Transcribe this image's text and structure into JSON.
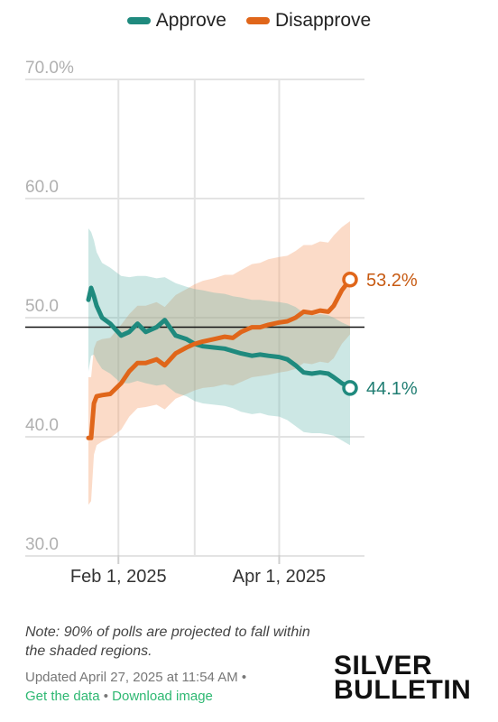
{
  "legend": [
    {
      "name": "Approve",
      "color": "#1f8a7e"
    },
    {
      "name": "Disapprove",
      "color": "#e0661a"
    }
  ],
  "chart_data": {
    "type": "line",
    "title": "",
    "xlabel": "",
    "ylabel": "",
    "ylim": [
      30,
      70
    ],
    "y_ticks": [
      "70.0%",
      "60.0",
      "50.0",
      "40.0",
      "30.0"
    ],
    "y_tick_values": [
      70,
      60,
      50,
      40,
      30
    ],
    "x_ticks": [
      "Feb 1, 2025",
      "Apr 1, 2025"
    ],
    "x_range": [
      "2025-01-20",
      "2025-04-27"
    ],
    "reference_line": 49.2,
    "grid": true,
    "legend_position": "top",
    "series": [
      {
        "name": "Approve",
        "color": "#1f8a7e",
        "x": [
          "2025-01-21",
          "2025-01-22",
          "2025-01-23",
          "2025-01-24",
          "2025-01-26",
          "2025-01-29",
          "2025-02-02",
          "2025-02-05",
          "2025-02-08",
          "2025-02-11",
          "2025-02-15",
          "2025-02-18",
          "2025-02-22",
          "2025-02-26",
          "2025-03-01",
          "2025-03-04",
          "2025-03-08",
          "2025-03-12",
          "2025-03-15",
          "2025-03-18",
          "2025-03-22",
          "2025-03-25",
          "2025-03-28",
          "2025-04-01",
          "2025-04-04",
          "2025-04-07",
          "2025-04-10",
          "2025-04-13",
          "2025-04-16",
          "2025-04-19",
          "2025-04-21",
          "2025-04-24",
          "2025-04-27"
        ],
        "values": [
          51.5,
          52.5,
          51.8,
          51.0,
          50.0,
          49.5,
          48.5,
          48.8,
          49.5,
          48.8,
          49.2,
          49.8,
          48.5,
          48.2,
          47.8,
          47.6,
          47.5,
          47.4,
          47.2,
          47.0,
          46.8,
          46.9,
          46.8,
          46.7,
          46.5,
          46.0,
          45.4,
          45.3,
          45.4,
          45.3,
          45.0,
          44.5,
          44.1
        ],
        "upper": [
          57.5,
          57.2,
          56.5,
          55.5,
          54.6,
          54.2,
          53.5,
          53.4,
          53.5,
          53.5,
          53.3,
          53.4,
          52.9,
          52.6,
          52.4,
          52.3,
          52.1,
          52.0,
          51.8,
          51.7,
          51.5,
          51.5,
          51.4,
          51.3,
          51.2,
          50.9,
          50.4,
          50.2,
          50.3,
          50.2,
          50.0,
          49.6,
          49.3
        ],
        "lower": [
          45.5,
          46.8,
          46.9,
          46.4,
          45.7,
          45.3,
          44.5,
          44.5,
          44.7,
          44.5,
          44.3,
          44.4,
          43.7,
          43.4,
          43.0,
          42.8,
          42.7,
          42.6,
          42.4,
          42.1,
          41.9,
          42.0,
          41.8,
          41.7,
          41.4,
          40.9,
          40.4,
          40.3,
          40.3,
          40.2,
          40.1,
          39.7,
          39.3
        ]
      },
      {
        "name": "Disapprove",
        "color": "#e0661a",
        "x": [
          "2025-01-21",
          "2025-01-22",
          "2025-01-23",
          "2025-01-24",
          "2025-01-26",
          "2025-01-29",
          "2025-02-02",
          "2025-02-05",
          "2025-02-08",
          "2025-02-11",
          "2025-02-15",
          "2025-02-18",
          "2025-02-22",
          "2025-02-26",
          "2025-03-01",
          "2025-03-04",
          "2025-03-08",
          "2025-03-12",
          "2025-03-15",
          "2025-03-18",
          "2025-03-22",
          "2025-03-25",
          "2025-03-28",
          "2025-04-01",
          "2025-04-04",
          "2025-04-07",
          "2025-04-10",
          "2025-04-13",
          "2025-04-16",
          "2025-04-19",
          "2025-04-21",
          "2025-04-24",
          "2025-04-27"
        ],
        "values": [
          39.9,
          39.9,
          42.8,
          43.4,
          43.5,
          43.6,
          44.5,
          45.5,
          46.2,
          46.2,
          46.5,
          46.0,
          47.0,
          47.5,
          47.8,
          48.0,
          48.2,
          48.4,
          48.3,
          48.8,
          49.2,
          49.2,
          49.4,
          49.6,
          49.7,
          50.0,
          50.5,
          50.4,
          50.6,
          50.5,
          51.0,
          52.3,
          53.2
        ],
        "upper": [
          45.0,
          45.0,
          47.4,
          48.0,
          48.2,
          48.3,
          49.4,
          50.3,
          51.0,
          51.0,
          51.3,
          50.9,
          51.9,
          52.4,
          52.8,
          53.1,
          53.3,
          53.6,
          53.6,
          54.0,
          54.5,
          54.6,
          54.9,
          55.1,
          55.2,
          55.6,
          56.1,
          56.1,
          56.4,
          56.3,
          56.9,
          57.6,
          58.1
        ],
        "lower": [
          34.3,
          34.6,
          38.5,
          39.3,
          39.6,
          39.9,
          40.6,
          41.7,
          42.4,
          42.5,
          42.7,
          42.3,
          43.2,
          43.6,
          43.9,
          44.1,
          44.2,
          44.4,
          44.3,
          44.6,
          45.0,
          45.1,
          45.2,
          45.4,
          45.5,
          45.7,
          46.2,
          46.1,
          46.3,
          46.2,
          46.6,
          47.8,
          48.6
        ]
      }
    ],
    "end_labels": [
      {
        "series": "Disapprove",
        "text": "53.2%",
        "color": "#c75a12"
      },
      {
        "series": "Approve",
        "text": "44.1%",
        "color": "#1f7d72"
      }
    ]
  },
  "note": "Note: 90% of polls are projected to fall within the shaded regions.",
  "updated": "Updated April 27, 2025 at 11:54 AM",
  "separator": "•",
  "links": {
    "get_data": "Get the data",
    "download": "Download image"
  },
  "logo": {
    "line1": "SILVER",
    "line2": "BULLETIN"
  }
}
